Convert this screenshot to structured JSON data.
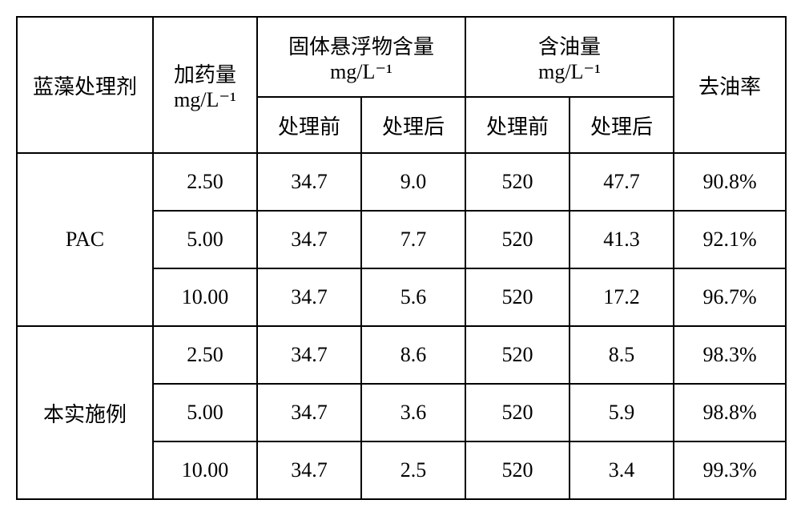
{
  "headers": {
    "agent": "蓝藻处理剂",
    "dosage": "加药量",
    "ss": "固体悬浮物含量",
    "oil": "含油量",
    "removal": "去油率",
    "unit": "mg/L⁻¹",
    "before": "处理前",
    "after": "处理后"
  },
  "groups": [
    {
      "name": "PAC",
      "rows": [
        {
          "dosage": "2.50",
          "ss_before": "34.7",
          "ss_after": "9.0",
          "oil_before": "520",
          "oil_after": "47.7",
          "removal": "90.8%"
        },
        {
          "dosage": "5.00",
          "ss_before": "34.7",
          "ss_after": "7.7",
          "oil_before": "520",
          "oil_after": "41.3",
          "removal": "92.1%"
        },
        {
          "dosage": "10.00",
          "ss_before": "34.7",
          "ss_after": "5.6",
          "oil_before": "520",
          "oil_after": "17.2",
          "removal": "96.7%"
        }
      ]
    },
    {
      "name": "本实施例",
      "rows": [
        {
          "dosage": "2.50",
          "ss_before": "34.7",
          "ss_after": "8.6",
          "oil_before": "520",
          "oil_after": "8.5",
          "removal": "98.3%"
        },
        {
          "dosage": "5.00",
          "ss_before": "34.7",
          "ss_after": "3.6",
          "oil_before": "520",
          "oil_after": "5.9",
          "removal": "98.8%"
        },
        {
          "dosage": "10.00",
          "ss_before": "34.7",
          "ss_after": "2.5",
          "oil_before": "520",
          "oil_after": "3.4",
          "removal": "99.3%"
        }
      ]
    }
  ],
  "col_widths": [
    "170",
    "130",
    "130",
    "130",
    "130",
    "130",
    "140"
  ]
}
